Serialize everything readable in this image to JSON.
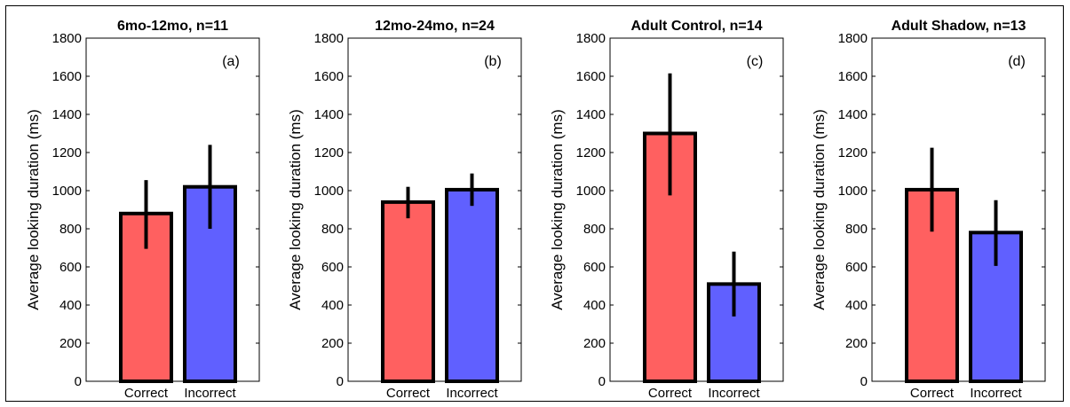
{
  "chart_data": [
    {
      "type": "bar",
      "title": "6mo-12mo, n=11",
      "panel_label": "(a)",
      "ylabel": "Average looking duration (ms)",
      "categories": [
        "Correct",
        "Incorrect"
      ],
      "values": [
        880,
        1020
      ],
      "error": [
        [
          695,
          1055
        ],
        [
          800,
          1240
        ]
      ],
      "colors": [
        "#ff6060",
        "#6060ff"
      ],
      "ylim": [
        0,
        1800
      ],
      "yticks": [
        "0",
        "200",
        "400",
        "600",
        "800",
        "1000",
        "1200",
        "1400",
        "1600",
        "1800"
      ]
    },
    {
      "type": "bar",
      "title": "12mo-24mo, n=24",
      "panel_label": "(b)",
      "ylabel": "Average looking duration (ms)",
      "categories": [
        "Correct",
        "Incorrect"
      ],
      "values": [
        940,
        1005
      ],
      "error": [
        [
          855,
          1020
        ],
        [
          920,
          1090
        ]
      ],
      "colors": [
        "#ff6060",
        "#6060ff"
      ],
      "ylim": [
        0,
        1800
      ],
      "yticks": [
        "0",
        "200",
        "400",
        "600",
        "800",
        "1000",
        "1200",
        "1400",
        "1600",
        "1800"
      ]
    },
    {
      "type": "bar",
      "title": "Adult Control, n=14",
      "panel_label": "(c)",
      "ylabel": "Average looking duration (ms)",
      "categories": [
        "Correct",
        "Incorrect"
      ],
      "values": [
        1300,
        510
      ],
      "error": [
        [
          975,
          1615
        ],
        [
          340,
          680
        ]
      ],
      "colors": [
        "#ff6060",
        "#6060ff"
      ],
      "ylim": [
        0,
        1800
      ],
      "yticks": [
        "0",
        "200",
        "400",
        "600",
        "800",
        "1000",
        "1200",
        "1400",
        "1600",
        "1800"
      ]
    },
    {
      "type": "bar",
      "title": "Adult Shadow, n=13",
      "panel_label": "(d)",
      "ylabel": "Average looking duration (ms)",
      "categories": [
        "Correct",
        "Incorrect"
      ],
      "values": [
        1005,
        780
      ],
      "error": [
        [
          785,
          1225
        ],
        [
          605,
          950
        ]
      ],
      "colors": [
        "#ff6060",
        "#6060ff"
      ],
      "ylim": [
        0,
        1800
      ],
      "yticks": [
        "0",
        "200",
        "400",
        "600",
        "800",
        "1000",
        "1200",
        "1400",
        "1600",
        "1800"
      ]
    }
  ]
}
